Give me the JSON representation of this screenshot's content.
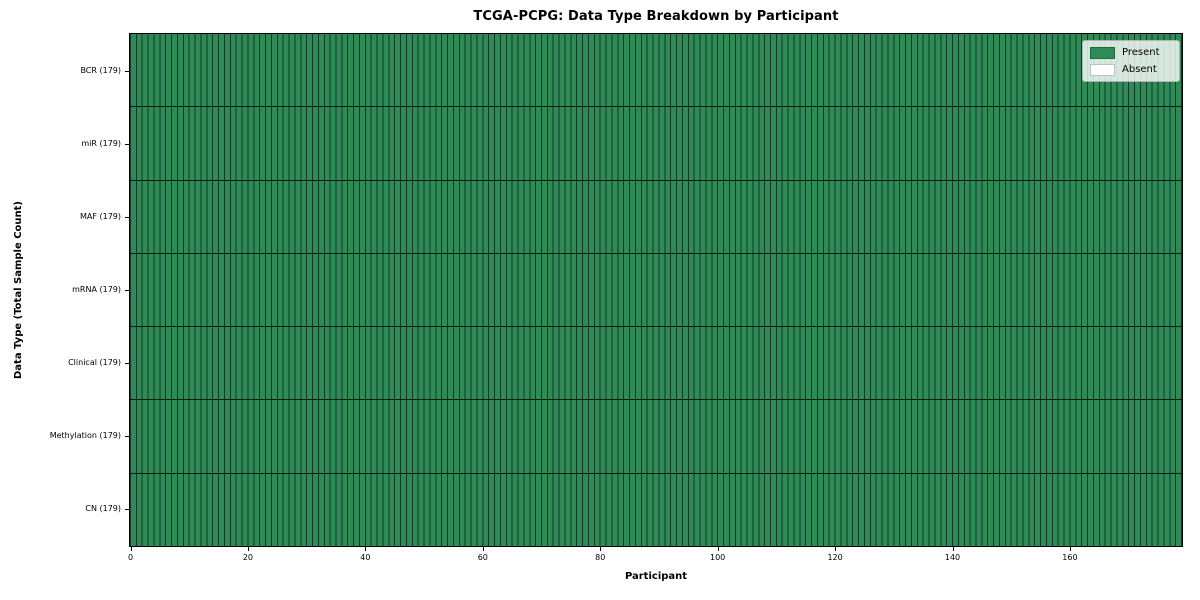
{
  "title": "TCGA-PCPG: Data Type Breakdown by Participant",
  "chart_data": {
    "type": "heatmap",
    "title": "TCGA-PCPG: Data Type Breakdown by Participant",
    "xlabel": "Participant",
    "ylabel": "Data Type (Total Sample Count)",
    "x_range": [
      0,
      179
    ],
    "x_ticks": [
      0,
      20,
      40,
      60,
      80,
      100,
      120,
      140,
      160
    ],
    "n_participants": 179,
    "rows": [
      {
        "label": "BCR (179)",
        "data_type": "BCR",
        "total_samples": 179,
        "present_count": 179,
        "absent_count": 0
      },
      {
        "label": "miR (179)",
        "data_type": "miR",
        "total_samples": 179,
        "present_count": 179,
        "absent_count": 0
      },
      {
        "label": "MAF (179)",
        "data_type": "MAF",
        "total_samples": 179,
        "present_count": 179,
        "absent_count": 0
      },
      {
        "label": "mRNA (179)",
        "data_type": "mRNA",
        "total_samples": 179,
        "present_count": 179,
        "absent_count": 0
      },
      {
        "label": "Clinical (179)",
        "data_type": "Clinical",
        "total_samples": 179,
        "present_count": 179,
        "absent_count": 0
      },
      {
        "label": "Methylation (179)",
        "data_type": "Methylation",
        "total_samples": 179,
        "present_count": 179,
        "absent_count": 0
      },
      {
        "label": "CN (179)",
        "data_type": "CN",
        "total_samples": 179,
        "present_count": 179,
        "absent_count": 0
      }
    ],
    "legend": {
      "position": "upper right",
      "entries": [
        {
          "label": "Present",
          "color": "#2e8b57"
        },
        {
          "label": "Absent",
          "color": "#ffffff"
        }
      ]
    },
    "colors": {
      "present": "#2e8b57",
      "absent": "#ffffff",
      "cell_edge": "#123a24",
      "row_separator": "#0b2416",
      "legend_border": "#b3b3b3"
    },
    "grid": "cell-edges-visible",
    "all_present": true
  }
}
